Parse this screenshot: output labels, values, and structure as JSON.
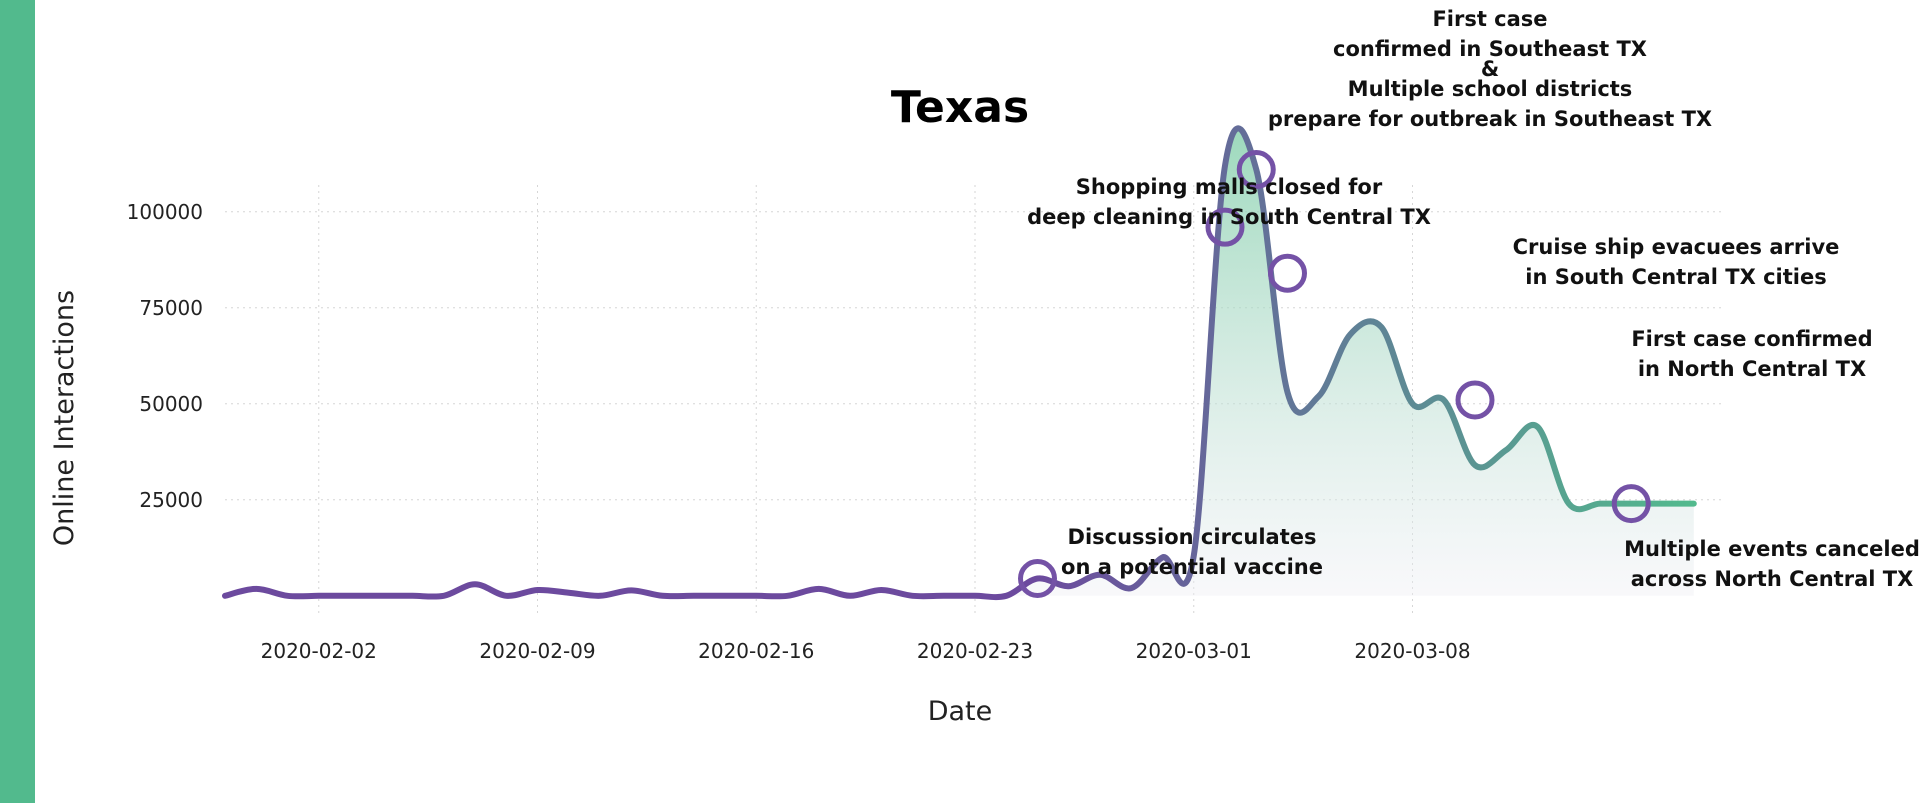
{
  "colors": {
    "accent_bar": "#52BA8D",
    "line_start": "#6C4A9E",
    "line_end": "#52BA8D",
    "marker": "#7452A6",
    "fill_top": "#7CCCA6",
    "fill_bottom": "#EEEEF4"
  },
  "chart_data": {
    "type": "line",
    "title": "Texas",
    "xlabel": "Date",
    "ylabel": "Online Interactions",
    "grid": true,
    "legend": "none",
    "x_tick_labels": [
      "2020-02-02",
      "2020-02-09",
      "2020-02-16",
      "2020-02-23",
      "2020-03-01",
      "2020-03-08"
    ],
    "y_tick_labels": [
      "25000",
      "50000",
      "75000",
      "100000"
    ],
    "y_ticks": [
      25000,
      50000,
      75000,
      100000
    ],
    "ylim": [
      -5000,
      120000
    ],
    "xlim": [
      "2020-01-30",
      "2020-03-18"
    ],
    "series": [
      {
        "x": [
          "2020-01-30",
          "2020-01-31",
          "2020-02-01",
          "2020-02-02",
          "2020-02-03",
          "2020-02-04",
          "2020-02-05",
          "2020-02-06",
          "2020-02-07",
          "2020-02-08",
          "2020-02-09",
          "2020-02-10",
          "2020-02-11",
          "2020-02-12",
          "2020-02-13",
          "2020-02-14",
          "2020-02-15",
          "2020-02-16",
          "2020-02-17",
          "2020-02-18",
          "2020-02-19",
          "2020-02-20",
          "2020-02-21",
          "2020-02-22",
          "2020-02-23",
          "2020-02-24",
          "2020-02-25",
          "2020-02-26",
          "2020-02-27",
          "2020-02-28",
          "2020-02-29",
          "2020-03-01",
          "2020-03-02",
          "2020-03-03",
          "2020-03-04",
          "2020-03-05",
          "2020-03-06",
          "2020-03-07",
          "2020-03-08",
          "2020-03-09",
          "2020-03-10",
          "2020-03-11",
          "2020-03-12",
          "2020-03-13",
          "2020-03-14",
          "2020-03-15",
          "2020-03-16",
          "2020-03-17"
        ],
        "y": [
          0,
          1800,
          0,
          0,
          0,
          0,
          0,
          0,
          3000,
          0,
          1500,
          800,
          0,
          1400,
          0,
          0,
          0,
          0,
          0,
          1800,
          0,
          1500,
          0,
          0,
          0,
          0,
          4500,
          2500,
          5500,
          2000,
          10000,
          10500,
          112000,
          111000,
          53000,
          52000,
          68000,
          70000,
          50000,
          51000,
          34000,
          38000,
          44000,
          24000,
          24000,
          24000,
          24000,
          24000
        ]
      }
    ],
    "annotations": [
      {
        "x": "2020-02-25",
        "y": 4500,
        "lines": [
          "Discussion circulates",
          "on a potential vaccine"
        ]
      },
      {
        "x": "2020-03-02",
        "y": 96000,
        "lines": [
          "Shopping malls closed for",
          "deep cleaning in South Central TX"
        ]
      },
      {
        "x": "2020-03-03",
        "y": 111000,
        "lines": [
          "First case",
          "confirmed in Southeast TX",
          "&",
          "Multiple school districts",
          "prepare for outbreak in Southeast TX"
        ]
      },
      {
        "x": "2020-03-04",
        "y": 84000,
        "lines": [
          "Cruise ship evacuees arrive",
          "in South Central TX cities"
        ]
      },
      {
        "x": "2020-03-10",
        "y": 51000,
        "lines": [
          "First case confirmed",
          "in North Central TX"
        ]
      },
      {
        "x": "2020-03-15",
        "y": 24000,
        "lines": [
          "Multiple events canceled",
          "across North Central TX"
        ]
      }
    ]
  }
}
